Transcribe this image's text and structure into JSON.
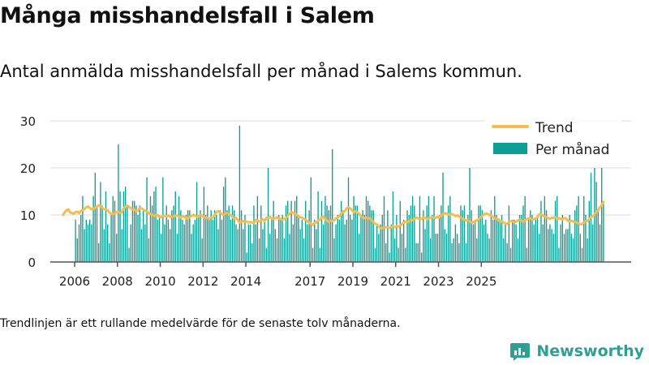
{
  "title": "Många misshandelsfall i Salem",
  "subtitle": "Antal anmälda misshandelsfall per månad i Salems kommun.",
  "footnote": "Trendlinjen är ett rullande medelvärde för de senaste tolv månaderna.",
  "brand": {
    "name": "Newsworthy",
    "color": "#2f9e94"
  },
  "colors": {
    "bars": "#0f9e96",
    "trend": "#f5bd4f",
    "axis": "#555555",
    "grid": "#dddddd"
  },
  "chart_data": {
    "type": "bar",
    "title": "Många misshandelsfall i Salem",
    "xlabel": "",
    "ylabel": "",
    "ylim": [
      0,
      30
    ],
    "yticks": [
      0,
      10,
      20,
      30
    ],
    "xticks": [
      "2006",
      "2008",
      "2010",
      "2012",
      "2014",
      "2017",
      "2019",
      "2021",
      "2023",
      "2025"
    ],
    "grid": true,
    "legend": "top-right",
    "x_start": "2006-01",
    "series": [
      {
        "name": "Per månad",
        "kind": "bar",
        "values": [
          9,
          5,
          8,
          10,
          14,
          7,
          9,
          8,
          9,
          8,
          14,
          19,
          12,
          4,
          17,
          12,
          7,
          15,
          8,
          4,
          10,
          14,
          13,
          6,
          25,
          15,
          7,
          15,
          16,
          12,
          3,
          8,
          13,
          13,
          12,
          10,
          12,
          7,
          11,
          8,
          18,
          5,
          14,
          12,
          15,
          16,
          9,
          10,
          6,
          18,
          8,
          12,
          9,
          7,
          11,
          12,
          15,
          6,
          14,
          11,
          9,
          8,
          10,
          11,
          11,
          6,
          8,
          9,
          17,
          10,
          11,
          5,
          16,
          10,
          12,
          9,
          11,
          9,
          11,
          10,
          7,
          11,
          9,
          16,
          18,
          11,
          12,
          9,
          12,
          11,
          8,
          7,
          29,
          11,
          7,
          10,
          2,
          8,
          8,
          4,
          12,
          8,
          14,
          5,
          12,
          7,
          9,
          3,
          20,
          6,
          9,
          13,
          7,
          5,
          10,
          9,
          10,
          5,
          12,
          13,
          6,
          13,
          8,
          13,
          14,
          10,
          7,
          9,
          5,
          13,
          8,
          11,
          18,
          3,
          9,
          7,
          15,
          3,
          13,
          8,
          14,
          12,
          11,
          12,
          24,
          5,
          8,
          10,
          9,
          13,
          11,
          8,
          9,
          18,
          10,
          9,
          14,
          12,
          12,
          6,
          10,
          11,
          10,
          14,
          13,
          12,
          11,
          11,
          3,
          8,
          6,
          8,
          10,
          14,
          4,
          11,
          2,
          8,
          15,
          5,
          10,
          3,
          13,
          6,
          9,
          3,
          11,
          10,
          12,
          14,
          12,
          4,
          4,
          14,
          2,
          11,
          7,
          12,
          14,
          5,
          10,
          14,
          6,
          6,
          10,
          12,
          19,
          7,
          6,
          12,
          14,
          4,
          5,
          8,
          6,
          4,
          12,
          11,
          12,
          4,
          10,
          20,
          11,
          8,
          9,
          5,
          12,
          12,
          11,
          8,
          9,
          6,
          5,
          11,
          9,
          14,
          10,
          9,
          9,
          10,
          5,
          8,
          4,
          12,
          3,
          9,
          9,
          8,
          5,
          10,
          10,
          12,
          14,
          3,
          9,
          11,
          10,
          8,
          9,
          10,
          6,
          13,
          8,
          14,
          11,
          7,
          8,
          7,
          6,
          13,
          14,
          3,
          8,
          10,
          6,
          7,
          7,
          10,
          6,
          5,
          11,
          12,
          14,
          6,
          3,
          14,
          10,
          5,
          13,
          19,
          8,
          20,
          17,
          11,
          8,
          20,
          13
        ]
      },
      {
        "name": "Trend",
        "kind": "line",
        "values": [
          10,
          10.6,
          11,
          11.2,
          10.5,
          10.4,
          10.3,
          10.6,
          10.7,
          10.4,
          10.9,
          11,
          11.3,
          11.6,
          11.8,
          11.5,
          11.2,
          11.3,
          11.5,
          11.8,
          12,
          11.8,
          11.5,
          11.2,
          11.2,
          11,
          10.5,
          10.2,
          10.2,
          10.3,
          10.6,
          10.6,
          10.4,
          10.5,
          11.4,
          11.8,
          12,
          11.7,
          11.4,
          11.2,
          11.1,
          10.8,
          10.9,
          11.5,
          11.4,
          11.1,
          10.9,
          10.8,
          10.4,
          10.2,
          10,
          9.8,
          9.9,
          10,
          9.6,
          9.5,
          9.8,
          9.8,
          9.7,
          9.9,
          9.6,
          9.6,
          9.8,
          9.8,
          9.9,
          9.6,
          9.5,
          9.7,
          9.6,
          9.3,
          9.2,
          9.6,
          9.8,
          10,
          9.9,
          9.6,
          9.6,
          10,
          9.9,
          9.6,
          9.4,
          9.4,
          9.1,
          9.4,
          9.4,
          10,
          10.6,
          10.8,
          10.5,
          10.2,
          10,
          10.4,
          10.4,
          10.1,
          10,
          9.6,
          9.2,
          9.4,
          8.9,
          8.4,
          8.5,
          8.7,
          8.6,
          8.6,
          8.4,
          8.5,
          8.4,
          8.3,
          8.9,
          8.8,
          8.6,
          8.8,
          9.1,
          8.7,
          9.4,
          9.3,
          9.6,
          9.2,
          9.2,
          9.3,
          9.5,
          9.2,
          9.2,
          8.9,
          9.2,
          9.2,
          9.9,
          10.2,
          10.6,
          10.5,
          10.2,
          10.1,
          9.6,
          9.5,
          9.4,
          9.2,
          9,
          8.7,
          8.3,
          8.2,
          7.9,
          8.3,
          8.4,
          8.8,
          9,
          9.5,
          9.6,
          9,
          8.8,
          8.6,
          8.8,
          8.7,
          8.9,
          9.3,
          9.4,
          9.8,
          10.4,
          10.6,
          10.8,
          11.4,
          11.6,
          11.4,
          11,
          10.6,
          10.8,
          10.6,
          10.2,
          9.8,
          9.4,
          9.3,
          9.4,
          9.3,
          9.2,
          8.9,
          8.5,
          8.1,
          8,
          7.5,
          7.2,
          7.2,
          7.3,
          7.4,
          7.3,
          7.2,
          7.4,
          7.6,
          7.4,
          7.6,
          7.5,
          7.8,
          8,
          8.4,
          8.6,
          8.5,
          8.6,
          8.9,
          8.9,
          9.2,
          9.5,
          9.3,
          9.1,
          9.2,
          9.5,
          9.4,
          9.1,
          9.2,
          9.4,
          9.5,
          9.4,
          9.4,
          9.6,
          9.5,
          10,
          10.2,
          10.4,
          10.3,
          10.1,
          10,
          10.2,
          10,
          9.8,
          9.9,
          9.6,
          9.5,
          9.2,
          9,
          8.8,
          8.9,
          8.6,
          8.4,
          8.5,
          8.6,
          8.8,
          9.1,
          9.4,
          9.8,
          10.1,
          10.3,
          10.2,
          10,
          9.9,
          9.5,
          9.3,
          9.2,
          9.1,
          8.6,
          8.6,
          8.4,
          8.2,
          8.1,
          8.5,
          8.7,
          8.6,
          8.4,
          8.6,
          8.8,
          9,
          8.8,
          8.6,
          8.8,
          9.1,
          9.3,
          9.2,
          9,
          9.1,
          9.3,
          9.5,
          10.2,
          10.1,
          9.9,
          9.7,
          9.5,
          9.3,
          9.2,
          9.4,
          9.4,
          9.5,
          9.2,
          9.3,
          9.2,
          9.1,
          9.3,
          9.3,
          8.8,
          8.6,
          8.8,
          8.6,
          8.5,
          8.4,
          8.2,
          8,
          8.1,
          8.4,
          8.7,
          8.7,
          9.1,
          9.6,
          9.7,
          10.1,
          10.6,
          11,
          11.6,
          12.1,
          12.8
        ]
      }
    ]
  }
}
